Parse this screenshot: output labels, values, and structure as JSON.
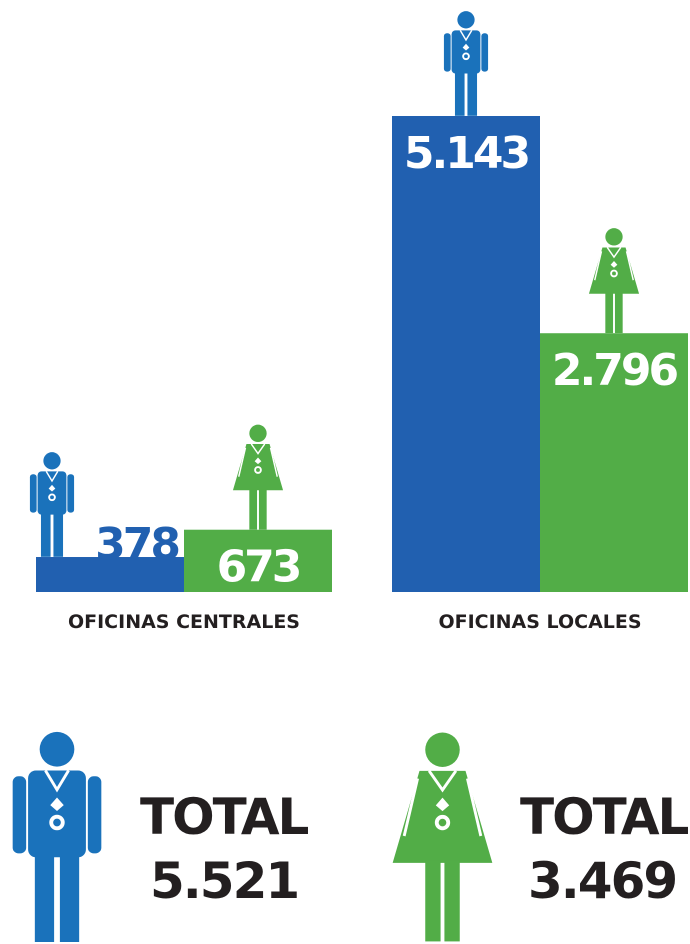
{
  "chart_data": {
    "type": "bar",
    "categories": [
      "OFICINAS CENTRALES",
      "OFICINAS LOCALES"
    ],
    "series": [
      {
        "color": "#2160b0",
        "icon_color": "#1a72bb",
        "values": [
          378,
          5143
        ],
        "value_labels": [
          "378",
          "5.143"
        ],
        "total_label": "TOTAL",
        "total": "5.521"
      },
      {
        "color": "#52ad47",
        "icon_color": "#52ad47",
        "values": [
          673,
          2796
        ],
        "value_labels": [
          "673",
          "2.796"
        ],
        "total_label": "TOTAL",
        "total": "3.469"
      }
    ]
  }
}
